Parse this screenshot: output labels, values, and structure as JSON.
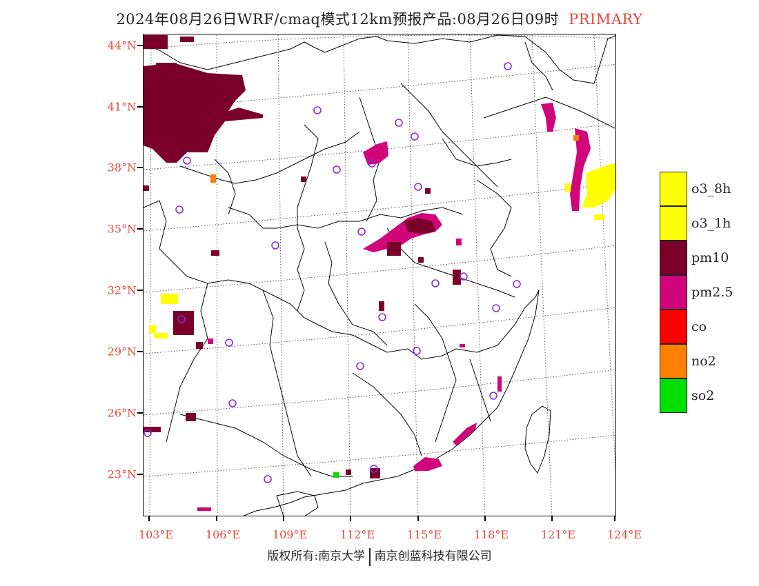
{
  "title": {
    "main": "2024年08月26日WRF/cmaq模式12km预报产品:08月26日09时",
    "tag": "PRIMARY"
  },
  "axes": {
    "y_labels": [
      "44°N",
      "41°N",
      "38°N",
      "35°N",
      "32°N",
      "29°N",
      "26°N",
      "23°N"
    ],
    "x_labels": [
      "103°E",
      "106°E",
      "109°E",
      "112°E",
      "115°E",
      "118°E",
      "121°E",
      "124°E"
    ]
  },
  "legend": [
    {
      "label": "o3_8h",
      "color": "#ffff00"
    },
    {
      "label": "o3_1h",
      "color": "#ffff00"
    },
    {
      "label": "pm10",
      "color": "#7a0029"
    },
    {
      "label": "pm2.5",
      "color": "#d0067a"
    },
    {
      "label": "co",
      "color": "#ff0000"
    },
    {
      "label": "no2",
      "color": "#ff7f00"
    },
    {
      "label": "so2",
      "color": "#00e000"
    }
  ],
  "footer": {
    "left": "版权所有:南京大学",
    "right": "南京创蓝科技有限公司"
  },
  "colors": {
    "label_red": "#e8473c",
    "station_circle": "#8a2be2",
    "pm10": "#7a0029",
    "pm25": "#d0067a",
    "o3": "#ffff00",
    "no2": "#ff7f00",
    "so2": "#00e000"
  }
}
